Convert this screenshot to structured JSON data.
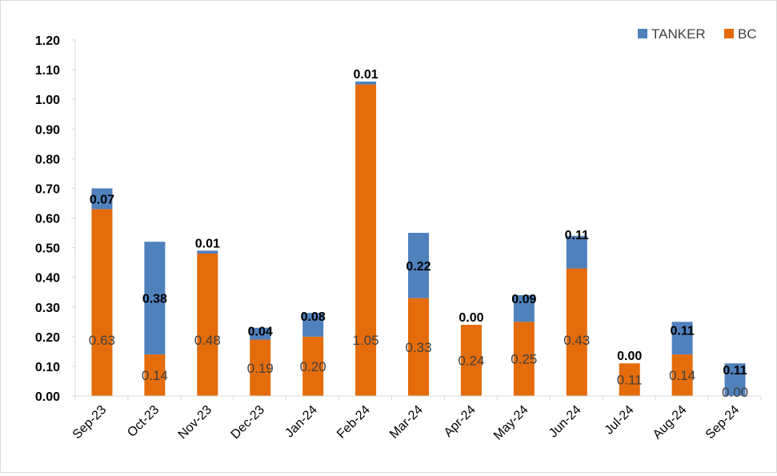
{
  "chart_data": {
    "type": "bar",
    "stacked": true,
    "title": "",
    "xlabel": "",
    "ylabel": "",
    "ylim": [
      0,
      1.2
    ],
    "yticks": [
      "0.00",
      "0.10",
      "0.20",
      "0.30",
      "0.40",
      "0.50",
      "0.60",
      "0.70",
      "0.80",
      "0.90",
      "1.00",
      "1.10",
      "1.20"
    ],
    "grid": false,
    "legend_position": "top-right",
    "categories": [
      "Sep-23",
      "Oct-23",
      "Nov-23",
      "Dec-23",
      "Jan-24",
      "Feb-24",
      "Mar-24",
      "Apr-24",
      "May-24",
      "Jun-24",
      "Jul-24",
      "Aug-24",
      "Sep-24"
    ],
    "series": [
      {
        "name": "BC",
        "color": "#E46C0A",
        "values": [
          0.63,
          0.14,
          0.48,
          0.19,
          0.2,
          1.05,
          0.33,
          0.24,
          0.25,
          0.43,
          0.11,
          0.14,
          0.0
        ],
        "labels": [
          "0.63",
          "0.14",
          "0.48",
          "0.19",
          "0.20",
          "1.05",
          "0.33",
          "0.24",
          "0.25",
          "0.43",
          "0.11",
          "0.14",
          "0.00"
        ]
      },
      {
        "name": "TANKER",
        "color": "#4F81BD",
        "values": [
          0.07,
          0.38,
          0.01,
          0.04,
          0.08,
          0.01,
          0.22,
          0.0,
          0.09,
          0.11,
          0.0,
          0.11,
          0.11
        ],
        "labels": [
          "0.07",
          "0.38",
          "0.01",
          "0.04",
          "0.08",
          "0.01",
          "0.22",
          "0.00",
          "0.09",
          "0.11",
          "0.00",
          "0.11",
          "0.11"
        ]
      }
    ],
    "legend": [
      "TANKER",
      "BC"
    ]
  }
}
